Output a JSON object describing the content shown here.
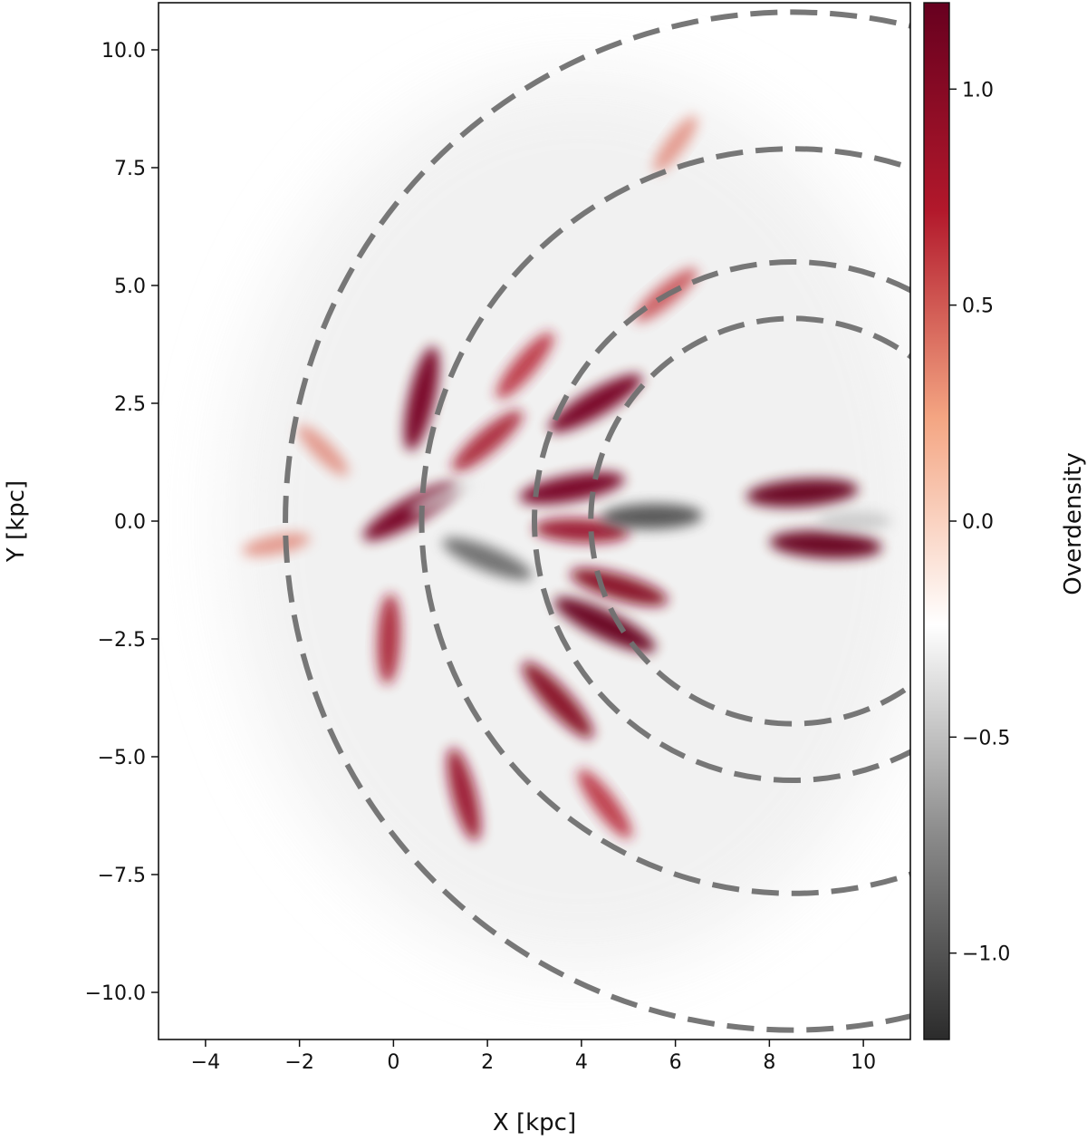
{
  "chart_data": {
    "type": "heatmap",
    "xlabel": "X [kpc]",
    "ylabel": "Y [kpc]",
    "xlim": [
      -5,
      11
    ],
    "ylim": [
      -11,
      11
    ],
    "x_ticks": [
      {
        "value": -4,
        "label": "−4"
      },
      {
        "value": -2,
        "label": "−2"
      },
      {
        "value": 0,
        "label": "0"
      },
      {
        "value": 2,
        "label": "2"
      },
      {
        "value": 4,
        "label": "4"
      },
      {
        "value": 6,
        "label": "6"
      },
      {
        "value": 8,
        "label": "8"
      },
      {
        "value": 10,
        "label": "10"
      }
    ],
    "y_ticks": [
      {
        "value": 10.0,
        "label": "10.0"
      },
      {
        "value": 7.5,
        "label": "7.5"
      },
      {
        "value": 5.0,
        "label": "5.0"
      },
      {
        "value": 2.5,
        "label": "2.5"
      },
      {
        "value": 0.0,
        "label": "0.0"
      },
      {
        "value": -2.5,
        "label": "−2.5"
      },
      {
        "value": -5.0,
        "label": "−5.0"
      },
      {
        "value": -7.5,
        "label": "−7.5"
      },
      {
        "value": -10.0,
        "label": "−10.0"
      }
    ],
    "colorbar": {
      "label": "Overdensity",
      "range": [
        -1.2,
        1.2
      ],
      "ticks": [
        {
          "value": 1.0,
          "label": "1.0"
        },
        {
          "value": 0.5,
          "label": "0.5"
        },
        {
          "value": 0.0,
          "label": "0.0"
        },
        {
          "value": -0.5,
          "label": "−0.5"
        },
        {
          "value": -1.0,
          "label": "−1.0"
        }
      ],
      "colormap": [
        "#2b2b2b",
        "#8c8c8c",
        "#ffffff",
        "#f4a582",
        "#b2182b",
        "#67001f"
      ]
    },
    "arcs": [
      {
        "center": [
          8.5,
          0.0
        ],
        "radius": 10.8
      },
      {
        "center": [
          8.5,
          0.0
        ],
        "radius": 7.9
      },
      {
        "center": [
          8.5,
          0.0
        ],
        "radius": 5.5
      },
      {
        "center": [
          8.5,
          0.0
        ],
        "radius": 4.3
      }
    ],
    "arc_color": "#707070",
    "features": [
      {
        "x": 0.35,
        "y": 0.2,
        "value": 1.1
      },
      {
        "x": 0.6,
        "y": 2.6,
        "value": 1.1
      },
      {
        "x": 1.5,
        "y": -5.8,
        "value": 0.9
      },
      {
        "x": -0.1,
        "y": -2.5,
        "value": 0.8
      },
      {
        "x": 3.8,
        "y": 0.7,
        "value": 1.1
      },
      {
        "x": 4.3,
        "y": 2.5,
        "value": 1.1
      },
      {
        "x": 8.7,
        "y": 0.6,
        "value": 1.2
      },
      {
        "x": 9.2,
        "y": -0.5,
        "value": 1.2
      },
      {
        "x": 4.5,
        "y": -2.2,
        "value": 1.2
      },
      {
        "x": 4.8,
        "y": -1.4,
        "value": 1.0
      },
      {
        "x": 3.5,
        "y": -3.8,
        "value": 1.0
      },
      {
        "x": 4.0,
        "y": -0.2,
        "value": 0.9
      },
      {
        "x": 2.0,
        "y": 1.7,
        "value": 0.8
      },
      {
        "x": 2.8,
        "y": 3.3,
        "value": 0.7
      },
      {
        "x": 4.5,
        "y": -6.0,
        "value": 0.7
      },
      {
        "x": 5.8,
        "y": 4.8,
        "value": 0.6
      },
      {
        "x": 6.0,
        "y": 8.0,
        "value": 0.4
      },
      {
        "x": -1.5,
        "y": 1.5,
        "value": 0.4
      },
      {
        "x": -2.5,
        "y": -0.5,
        "value": 0.4
      },
      {
        "x": 5.5,
        "y": 0.1,
        "value": -1.0
      },
      {
        "x": 2.0,
        "y": -0.8,
        "value": -0.9
      },
      {
        "x": 9.8,
        "y": 0.0,
        "value": -0.5
      },
      {
        "x": 1.0,
        "y": 0.5,
        "value": -0.4
      }
    ]
  }
}
